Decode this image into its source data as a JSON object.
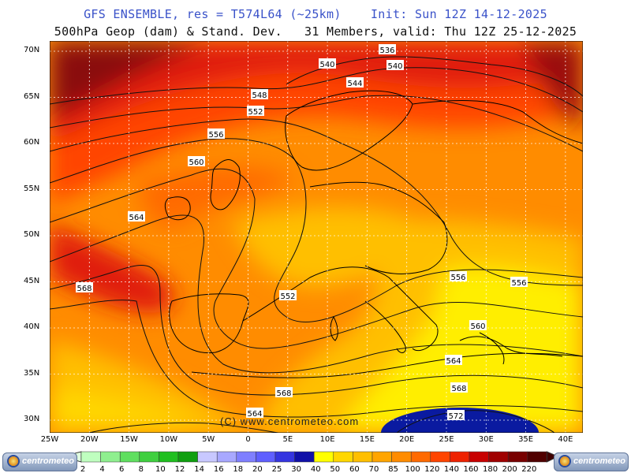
{
  "header": {
    "line1": "GFS ENSEMBLE, res = T574L64 (~25km)    Init: Sun 12Z 14-12-2025",
    "line2": "500hPa Geop (dam) & Stand. Dev.   31 Members, valid: Thu 12Z 25-12-2025"
  },
  "axes": {
    "lat_labels": [
      "70N",
      "65N",
      "60N",
      "55N",
      "50N",
      "45N",
      "40N",
      "35N",
      "30N"
    ],
    "lon_labels": [
      "25W",
      "20W",
      "15W",
      "10W",
      "5W",
      "0",
      "5E",
      "10E",
      "15E",
      "20E",
      "25E",
      "30E",
      "35E",
      "40E"
    ]
  },
  "contour_labels": [
    "536",
    "540",
    "540",
    "544",
    "548",
    "552",
    "556",
    "560",
    "564",
    "568",
    "552",
    "556",
    "556",
    "560",
    "564",
    "568",
    "572",
    "564",
    "568"
  ],
  "watermark": "(C) www.centrometeo.com",
  "legend": {
    "values": [
      "2",
      "4",
      "6",
      "8",
      "10",
      "12",
      "14",
      "16",
      "18",
      "20",
      "25",
      "30",
      "40",
      "50",
      "60",
      "70",
      "85",
      "100",
      "120",
      "140",
      "160",
      "180",
      "200",
      "220"
    ],
    "colors": [
      "#bfffbf",
      "#8fef8f",
      "#5fdf5f",
      "#3fcf3f",
      "#1fbf1f",
      "#0f9f0f",
      "#c8c8ff",
      "#a8a8ff",
      "#7f7fff",
      "#5f5fff",
      "#3535e0",
      "#1010a8",
      "#ffff00",
      "#ffd700",
      "#ffbf00",
      "#ffa500",
      "#ff8c00",
      "#ff6a00",
      "#ff4500",
      "#ee2200",
      "#c80000",
      "#a00000",
      "#780000",
      "#500000"
    ],
    "brand": "centrometeo"
  },
  "colors": {
    "title_blue": "#3a52c9",
    "deep_red": "#8a1010",
    "red": "#e01a10",
    "orange_red": "#ff4500",
    "orange": "#ff8c00",
    "amber": "#ffbf00",
    "yellow": "#ffee00",
    "navy": "#0a1aa0"
  }
}
